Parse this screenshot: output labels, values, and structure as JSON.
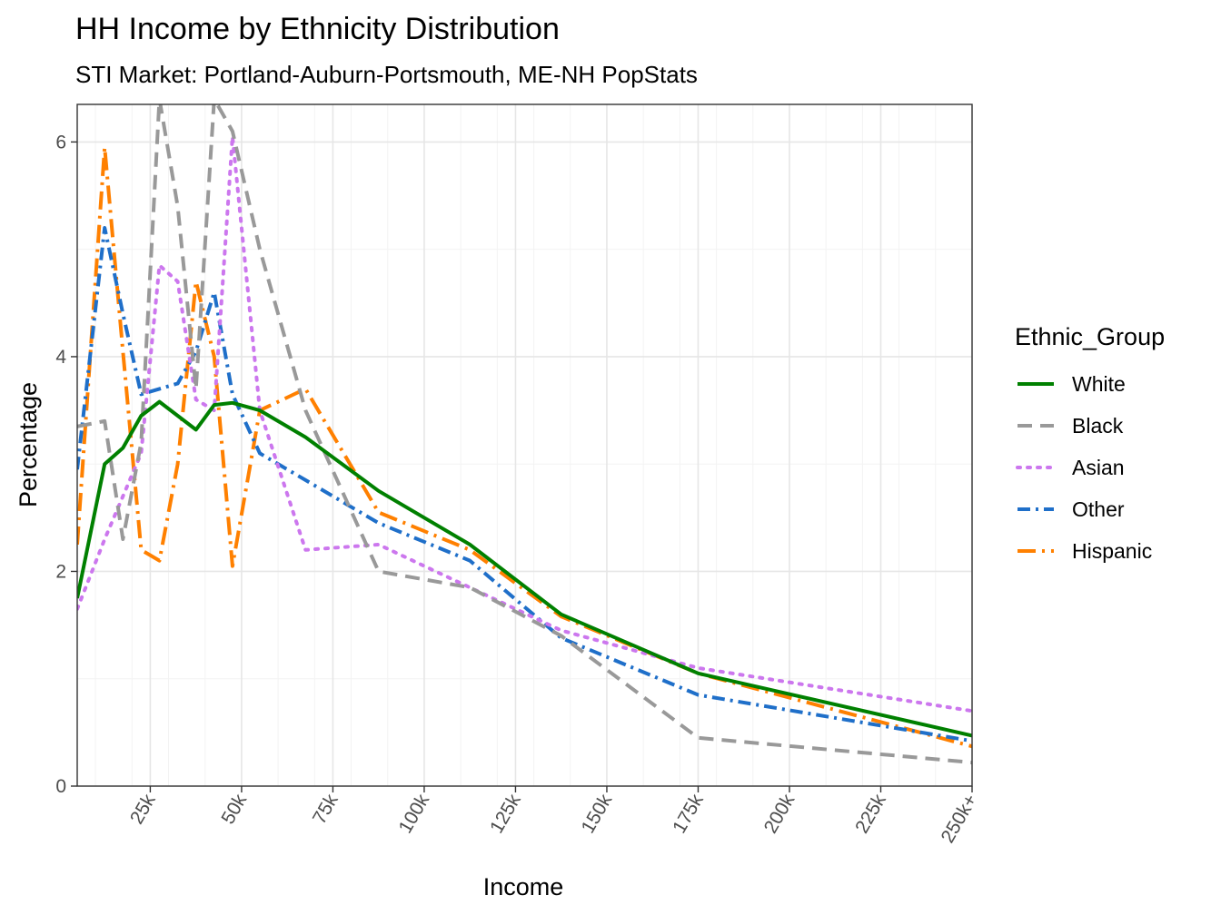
{
  "chart_data": {
    "type": "line",
    "title": "HH Income by Ethnicity Distribution",
    "subtitle": "STI Market: Portland-Auburn-Portsmouth, ME-NH PopStats",
    "xlabel": "Income",
    "ylabel": "Percentage",
    "xlim": [
      5,
      250
    ],
    "ylim": [
      0,
      6.35
    ],
    "x_ticks": [
      25,
      50,
      75,
      100,
      125,
      150,
      175,
      200,
      225,
      250
    ],
    "x_tick_labels": [
      "25k",
      "50k",
      "75k",
      "100k",
      "125k",
      "150k",
      "175k",
      "200k",
      "225k",
      "250k+"
    ],
    "y_ticks": [
      0,
      2,
      4,
      6
    ],
    "y_tick_labels": [
      "0",
      "2",
      "4",
      "6"
    ],
    "grid": true,
    "legend": {
      "title": "Ethnic_Group",
      "position": "right"
    },
    "x": [
      5,
      12.5,
      17.5,
      22.5,
      27.5,
      32.5,
      37.5,
      42.5,
      47.5,
      55,
      67.5,
      87.5,
      112.5,
      137.5,
      175,
      250
    ],
    "series": [
      {
        "name": "White",
        "color": "#008000",
        "dash": "solid",
        "values": [
          1.75,
          3.0,
          3.15,
          3.45,
          3.58,
          3.45,
          3.32,
          3.55,
          3.57,
          3.5,
          3.25,
          2.75,
          2.25,
          1.6,
          1.05,
          0.47
        ]
      },
      {
        "name": "Black",
        "color": "#999999",
        "dash": "dash",
        "values": [
          3.35,
          3.4,
          2.3,
          3.2,
          6.4,
          5.4,
          3.7,
          6.4,
          6.1,
          5.0,
          3.5,
          2.0,
          1.85,
          1.4,
          0.45,
          0.22
        ]
      },
      {
        "name": "Asian",
        "color": "#cc77ee",
        "dash": "dot",
        "values": [
          1.65,
          2.3,
          2.7,
          3.1,
          4.85,
          4.7,
          3.6,
          3.5,
          6.05,
          3.5,
          2.2,
          2.25,
          1.85,
          1.45,
          1.1,
          0.7
        ]
      },
      {
        "name": "Other",
        "color": "#1f6fc9",
        "dash": "dashdot",
        "values": [
          2.95,
          5.2,
          4.4,
          3.65,
          3.7,
          3.75,
          4.05,
          4.6,
          3.65,
          3.1,
          2.85,
          2.45,
          2.1,
          1.38,
          0.85,
          0.42
        ]
      },
      {
        "name": "Hispanic",
        "color": "#ff8000",
        "dash": "longdashdot",
        "values": [
          2.25,
          5.95,
          4.05,
          2.2,
          2.1,
          3.0,
          4.7,
          4.0,
          2.05,
          3.5,
          3.7,
          2.55,
          2.2,
          1.58,
          1.05,
          0.37
        ]
      }
    ]
  }
}
